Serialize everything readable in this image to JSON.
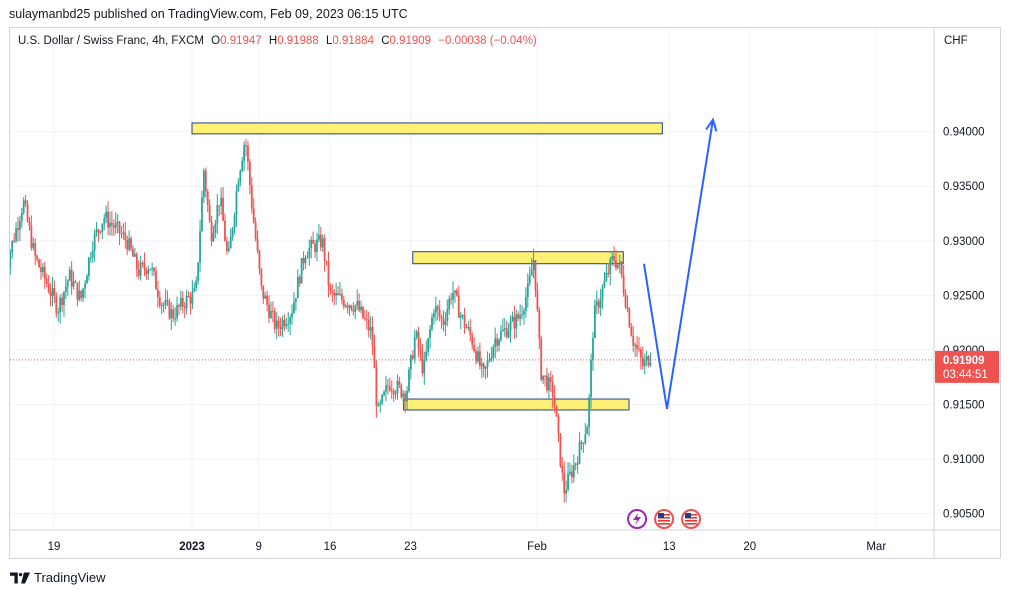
{
  "header": {
    "published": "sulaymanbd25 published on TradingView.com, Feb 09, 2023 06:15 UTC"
  },
  "legend": {
    "symbol": "U.S. Dollar / Swiss Franc, 4h, FXCM",
    "o_label": "O",
    "o_value": "0.91947",
    "h_label": "H",
    "h_value": "0.91988",
    "l_label": "L",
    "l_value": "0.91884",
    "c_label": "C",
    "c_value": "0.91909",
    "change": "−0.00038 (−0.04%)"
  },
  "currency": "CHF",
  "footer": {
    "brand": "TradingView",
    "logo_icon": "tradingview-logo-icon"
  },
  "colors": {
    "up": "#26a69a",
    "down": "#ef5350",
    "zone_fill": "#fff176",
    "zone_border": "#1e3f8a",
    "arrow": "#2962ff",
    "price_tag": "#ef5350"
  },
  "event_icons": [
    "lightning-icon",
    "us-flag-icon",
    "us-flag-icon"
  ],
  "chart_data": {
    "type": "candlestick",
    "title": "U.S. Dollar / Swiss Franc, 4h, FXCM",
    "ylabel": "CHF",
    "ylim": [
      0.9035,
      0.9495
    ],
    "yticks": [
      "0.90500",
      "0.91000",
      "0.91500",
      "0.92000",
      "0.92500",
      "0.93000",
      "0.93500",
      "0.94000"
    ],
    "xticks": [
      {
        "label": "19",
        "x": -12
      },
      {
        "label": "2023",
        "x": 0
      },
      {
        "label": "9",
        "x": 5.8
      },
      {
        "label": "16",
        "x": 12
      },
      {
        "label": "23",
        "x": 19
      },
      {
        "label": "Feb",
        "x": 30
      },
      {
        "label": "13",
        "x": 41.5
      },
      {
        "label": "20",
        "x": 48.5
      },
      {
        "label": "Mar",
        "x": 59.5
      }
    ],
    "current_price": "0.91909",
    "countdown": "03:44:51",
    "ohlc_anchor": [
      [
        -16.3,
        0.9264
      ],
      [
        -14.5,
        0.9336
      ],
      [
        -13.5,
        0.9285
      ],
      [
        -12.5,
        0.9262
      ],
      [
        -11.5,
        0.9238
      ],
      [
        -10.5,
        0.9268
      ],
      [
        -9.5,
        0.9246
      ],
      [
        -8.5,
        0.9298
      ],
      [
        -7.5,
        0.9322
      ],
      [
        -6.5,
        0.9312
      ],
      [
        -5.5,
        0.93
      ],
      [
        -4.5,
        0.9272
      ],
      [
        -3.5,
        0.9278
      ],
      [
        -2.5,
        0.9244
      ],
      [
        -1.5,
        0.9232
      ],
      [
        -0.5,
        0.9244
      ],
      [
        0.5,
        0.9252
      ],
      [
        1.2,
        0.9365
      ],
      [
        1.8,
        0.9305
      ],
      [
        2.6,
        0.934
      ],
      [
        3.3,
        0.928
      ],
      [
        4.2,
        0.936
      ],
      [
        4.8,
        0.9395
      ],
      [
        5.4,
        0.933
      ],
      [
        6.2,
        0.9255
      ],
      [
        7.5,
        0.922
      ],
      [
        8.8,
        0.9235
      ],
      [
        10.0,
        0.929
      ],
      [
        11.5,
        0.93
      ],
      [
        12.2,
        0.925
      ],
      [
        13.5,
        0.9245
      ],
      [
        14.5,
        0.924
      ],
      [
        15.8,
        0.9215
      ],
      [
        16.3,
        0.914
      ],
      [
        17.3,
        0.917
      ],
      [
        18.8,
        0.916
      ],
      [
        19.6,
        0.9215
      ],
      [
        20.3,
        0.918
      ],
      [
        21.2,
        0.924
      ],
      [
        22.0,
        0.9225
      ],
      [
        22.8,
        0.9255
      ],
      [
        23.6,
        0.923
      ],
      [
        24.5,
        0.921
      ],
      [
        25.5,
        0.9175
      ],
      [
        26.5,
        0.921
      ],
      [
        27.6,
        0.922
      ],
      [
        28.6,
        0.923
      ],
      [
        29.4,
        0.9255
      ],
      [
        29.9,
        0.9285
      ],
      [
        30.5,
        0.918
      ],
      [
        31.6,
        0.916
      ],
      [
        32.5,
        0.907
      ],
      [
        33.6,
        0.91
      ],
      [
        34.6,
        0.9135
      ],
      [
        35.1,
        0.923
      ],
      [
        36.0,
        0.926
      ],
      [
        36.8,
        0.9285
      ],
      [
        37.4,
        0.9275
      ],
      [
        37.9,
        0.9245
      ],
      [
        38.5,
        0.921
      ],
      [
        39.4,
        0.9185
      ],
      [
        40.0,
        0.9195
      ]
    ],
    "zones": [
      {
        "from": 0,
        "to": 40.9,
        "top": 0.9408,
        "bottom": 0.9398
      },
      {
        "from": 19.2,
        "to": 37.5,
        "top": 0.929,
        "bottom": 0.9279
      },
      {
        "from": 18.4,
        "to": 38.0,
        "top": 0.9155,
        "bottom": 0.9145
      }
    ],
    "arrow_path": [
      [
        39.3,
        0.9279
      ],
      [
        41.3,
        0.9146
      ],
      [
        45.3,
        0.9411
      ]
    ]
  }
}
